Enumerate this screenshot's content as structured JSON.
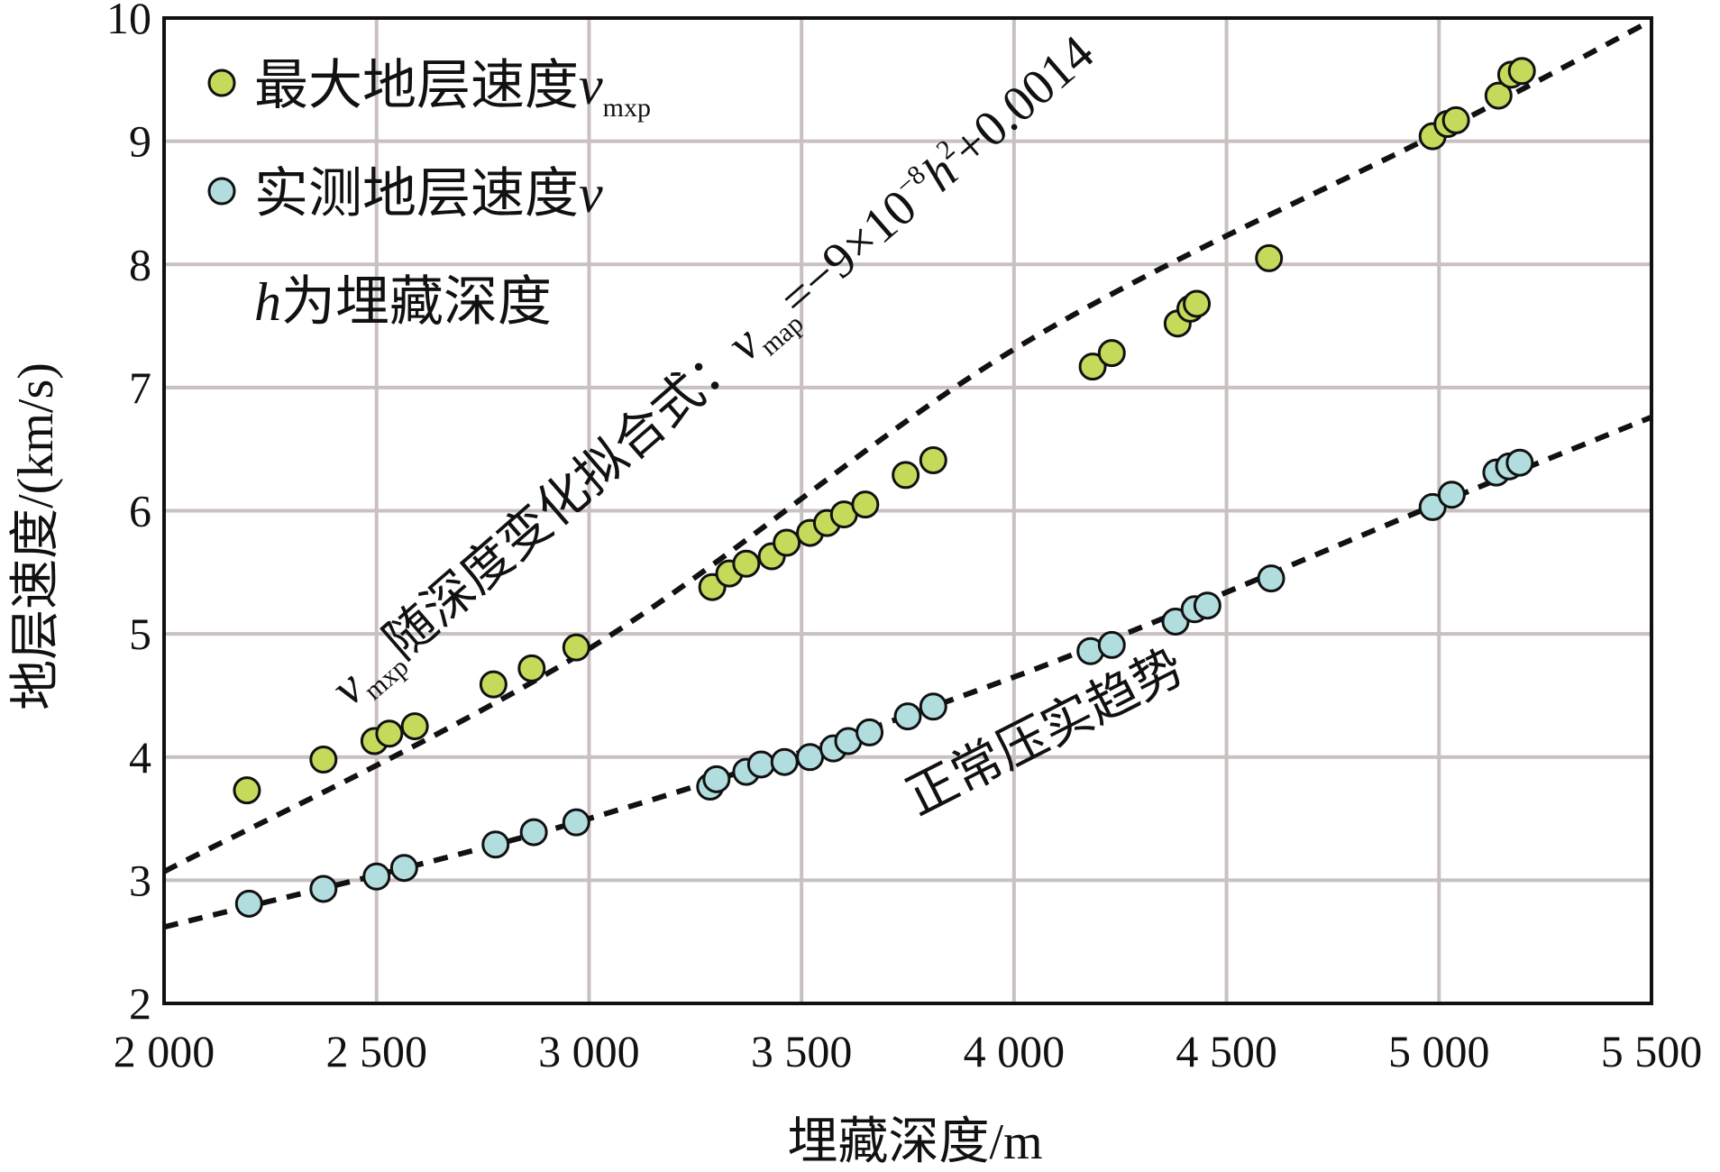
{
  "chart_data": {
    "type": "scatter",
    "xlabel": "埋藏深度/m",
    "ylabel": "地层速度/(km/s)",
    "xlim": [
      2000,
      5500
    ],
    "ylim": [
      2,
      10
    ],
    "x_ticks": [
      "2 000",
      "2 500",
      "3 000",
      "3 500",
      "4 000",
      "4 500",
      "5 000",
      "5 500"
    ],
    "y_ticks": [
      "2",
      "3",
      "4",
      "5",
      "6",
      "7",
      "8",
      "9",
      "10"
    ],
    "x_grid": [
      2500,
      3000,
      3500,
      4000,
      4500,
      5000
    ],
    "y_grid": [
      3,
      4,
      5,
      6,
      7,
      8,
      9
    ],
    "grid": true,
    "legend_position": "top-left",
    "colors": {
      "max_velocity": "#c5da5a",
      "measured_velocity": "#b2dddf",
      "grid": "#c9c0c0",
      "fit_line": "#111111"
    },
    "legend": {
      "series1_text": "最大地层速度",
      "series1_var": "v",
      "series1_sub": "mxp",
      "series2_text": "实测地层速度",
      "series2_var": "v",
      "note_var": "h",
      "note_text": "为埋藏深度"
    },
    "annotations": {
      "upper_var": "v",
      "upper_sub": "mxp",
      "upper_text": "随深度变化拟合式：",
      "upper_eq_var": "v",
      "upper_eq_sub": "map",
      "upper_eq_a": "=−9×10",
      "upper_eq_exp": "−8",
      "upper_eq_h": "h",
      "upper_eq_h_exp": "2",
      "upper_eq_b": "+0.0014",
      "lower_text": "正常压实趋势"
    },
    "series": [
      {
        "name": "最大地层速度vmxp",
        "x": [
          2195,
          2375,
          2495,
          2530,
          2590,
          2775,
          2865,
          2970,
          3290,
          3330,
          3370,
          3430,
          3465,
          3520,
          3560,
          3600,
          3650,
          3745,
          3810,
          4185,
          4230,
          4385,
          4415,
          4430,
          4600,
          4985,
          5020,
          5040,
          5140,
          5170,
          5195
        ],
        "y": [
          3.73,
          3.98,
          4.13,
          4.19,
          4.25,
          4.59,
          4.72,
          4.89,
          5.38,
          5.49,
          5.57,
          5.63,
          5.74,
          5.82,
          5.9,
          5.97,
          6.05,
          6.29,
          6.41,
          7.17,
          7.28,
          7.52,
          7.64,
          7.68,
          8.05,
          9.04,
          9.14,
          9.17,
          9.37,
          9.54,
          9.57
        ]
      },
      {
        "name": "实测地层速度v",
        "x": [
          2200,
          2375,
          2500,
          2565,
          2780,
          2870,
          2970,
          3285,
          3300,
          3370,
          3405,
          3460,
          3520,
          3575,
          3610,
          3660,
          3750,
          3810,
          4180,
          4230,
          4380,
          4425,
          4455,
          4605,
          4985,
          5030,
          5135,
          5165,
          5190
        ],
        "y": [
          2.81,
          2.93,
          3.03,
          3.1,
          3.29,
          3.39,
          3.47,
          3.76,
          3.82,
          3.88,
          3.94,
          3.96,
          4.0,
          4.07,
          4.13,
          4.2,
          4.33,
          4.41,
          4.86,
          4.91,
          5.1,
          5.2,
          5.23,
          5.45,
          6.03,
          6.13,
          6.31,
          6.36,
          6.39
        ]
      }
    ],
    "fit_lines": [
      {
        "for": "最大地层速度vmxp",
        "x": [
          2000,
          3000,
          4000,
          5000,
          5500
        ],
        "y": [
          3.07,
          4.88,
          7.31,
          9.07,
          9.98
        ]
      },
      {
        "for": "实测地层速度v",
        "x": [
          2000,
          3000,
          4000,
          5000,
          5500
        ],
        "y": [
          2.62,
          3.5,
          4.65,
          6.06,
          6.76
        ]
      }
    ]
  }
}
